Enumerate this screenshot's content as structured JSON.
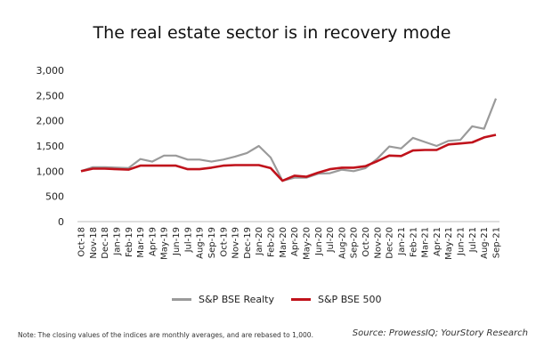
{
  "chart_data": {
    "type": "line",
    "title": "The real estate sector is in recovery mode",
    "xlabel": "",
    "ylabel": "",
    "ylim": [
      0,
      3000
    ],
    "yticks": [
      "0",
      "500",
      "1,000",
      "1,500",
      "2,000",
      "2,500",
      "3,000"
    ],
    "ytick_values": [
      0,
      500,
      1000,
      1500,
      2000,
      2500,
      3000
    ],
    "grid": false,
    "legend_position": "bottom-center",
    "categories": [
      "Oct-18",
      "Nov-18",
      "Dec-18",
      "Jan-19",
      "Feb-19",
      "Mar-19",
      "Apr-19",
      "May-19",
      "Jun-19",
      "Jul-19",
      "Aug-19",
      "Sep-19",
      "Oct-19",
      "Nov-19",
      "Dec-19",
      "Jan-20",
      "Feb-20",
      "Mar-20",
      "Apr-20",
      "May-20",
      "Jun-20",
      "Jul-20",
      "Aug-20",
      "Sep-20",
      "Oct-20",
      "Nov-20",
      "Dec-20",
      "Jan-21",
      "Feb-21",
      "Mar-21",
      "Apr-21",
      "May-21",
      "Jun-21",
      "Jul-21",
      "Aug-21",
      "Sep-21"
    ],
    "series": [
      {
        "name": "S&P BSE Realty",
        "color": "#9a9a9a",
        "values": [
          1000,
          1080,
          1080,
          1070,
          1060,
          1240,
          1190,
          1310,
          1310,
          1230,
          1230,
          1190,
          1230,
          1290,
          1360,
          1500,
          1270,
          810,
          870,
          870,
          950,
          960,
          1030,
          1000,
          1060,
          1250,
          1490,
          1450,
          1660,
          1580,
          1500,
          1600,
          1620,
          1890,
          1840,
          2440
        ]
      },
      {
        "name": "S&P BSE 500",
        "color": "#c0121b",
        "values": [
          1000,
          1050,
          1050,
          1040,
          1030,
          1110,
          1110,
          1110,
          1110,
          1040,
          1040,
          1070,
          1110,
          1120,
          1120,
          1120,
          1060,
          810,
          910,
          890,
          970,
          1040,
          1070,
          1070,
          1100,
          1200,
          1310,
          1300,
          1410,
          1420,
          1420,
          1530,
          1550,
          1570,
          1670,
          1720
        ]
      }
    ]
  },
  "note": "Note: The closing values of the indices are monthly averages, and are rebased to 1,000.",
  "source": "Source: ProwessIQ; YourStory Research"
}
